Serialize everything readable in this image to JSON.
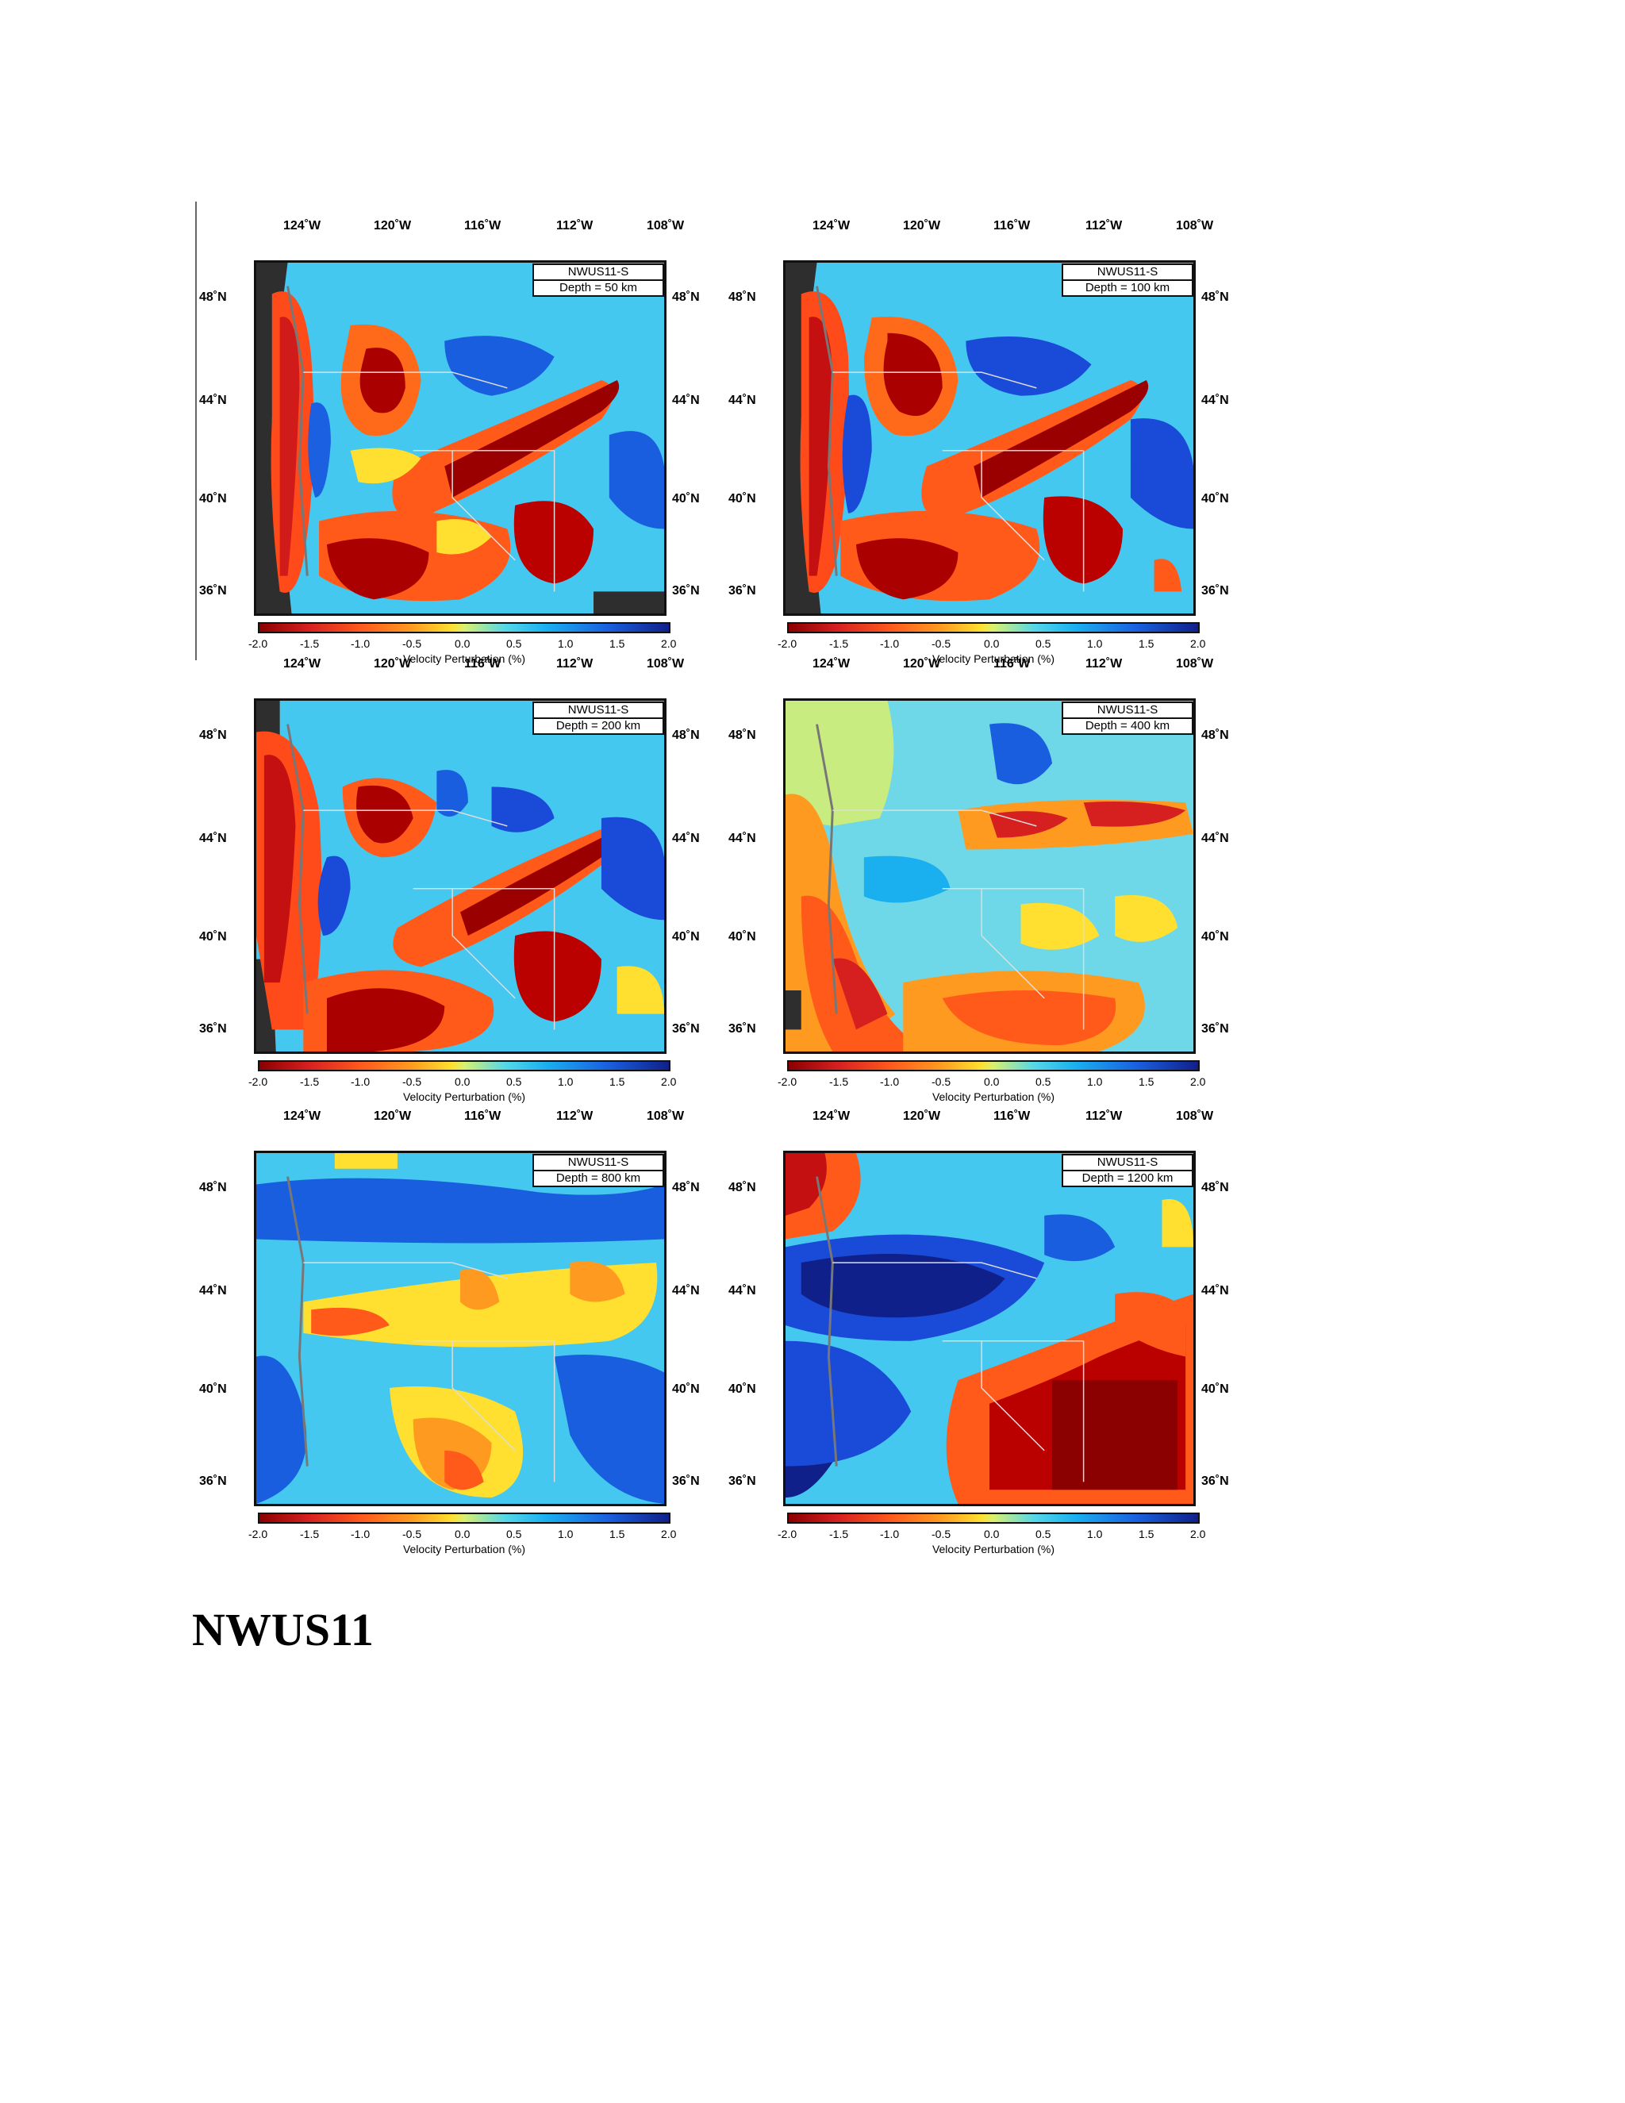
{
  "document": {
    "title": "NWUS11"
  },
  "colorbar": {
    "ticks": [
      "-2.0",
      "-1.5",
      "-1.0",
      "-0.5",
      "0.0",
      "0.5",
      "1.0",
      "1.5",
      "2.0"
    ],
    "title": "Velocity Perturbation (%)",
    "colors": [
      "#8b0000",
      "#d62020",
      "#ff5a1e",
      "#ff9a20",
      "#ffe030",
      "#55d8e8",
      "#1ab0f0",
      "#1a60e0",
      "#10208a"
    ]
  },
  "axes": {
    "lon_ticks": [
      "124˚W",
      "120˚W",
      "116˚W",
      "112˚W",
      "108˚W"
    ],
    "lat_ticks": [
      "48˚N",
      "44˚N",
      "40˚N",
      "36˚N"
    ]
  },
  "panels": [
    {
      "model": "NWUS11-S",
      "depth": "Depth = 50 km"
    },
    {
      "model": "NWUS11-S",
      "depth": "Depth = 100 km"
    },
    {
      "model": "NWUS11-S",
      "depth": "Depth = 200 km"
    },
    {
      "model": "NWUS11-S",
      "depth": "Depth = 400 km"
    },
    {
      "model": "NWUS11-S",
      "depth": "Depth = 800 km"
    },
    {
      "model": "NWUS11-S",
      "depth": "Depth = 1200 km"
    }
  ]
}
